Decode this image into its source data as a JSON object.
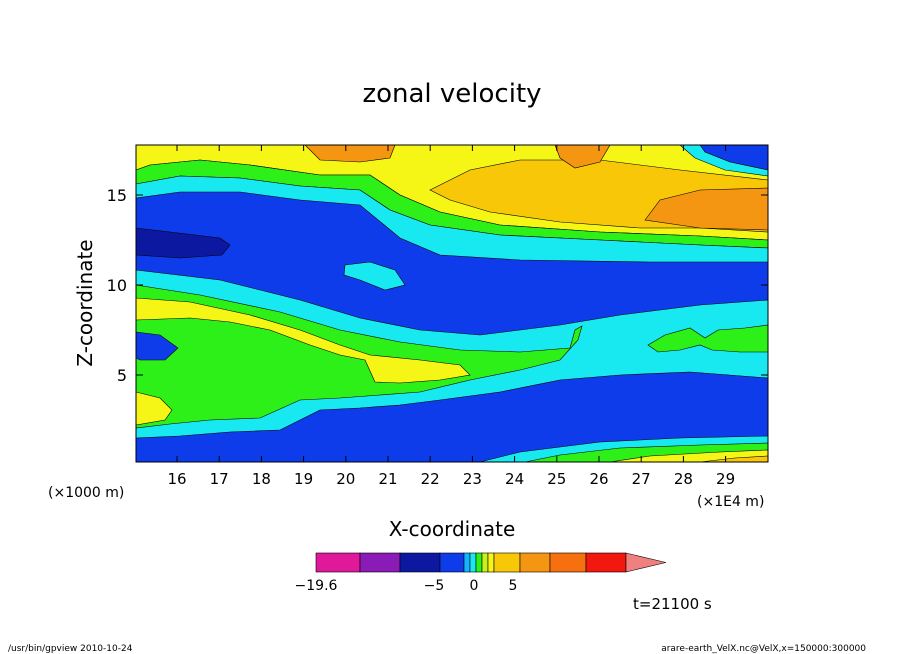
{
  "chart_data": {
    "type": "heatmap",
    "title": "zonal velocity",
    "xlabel": "X-coordinate",
    "ylabel": "Z-coordinate",
    "x_unit_left": "(×1000 m)",
    "x_unit_right": "(×1E4 m)",
    "x_ticks": [
      "16",
      "17",
      "18",
      "19",
      "20",
      "21",
      "22",
      "23",
      "24",
      "25",
      "26",
      "27",
      "28",
      "29"
    ],
    "y_ticks": [
      "5",
      "10",
      "15"
    ],
    "colorbar_labels": [
      "−19.6",
      "−5",
      "0",
      "5"
    ],
    "colorbar_colors": [
      "#e0189a",
      "#8a1bb6",
      "#0c18a0",
      "#0f3ceb",
      "#15b2ff",
      "#18e8f0",
      "#2cf018",
      "#c8f01a",
      "#f5f516",
      "#f7c708",
      "#f59612",
      "#f77010",
      "#f21810"
    ],
    "colorbar_extend_color": "#f08080",
    "time_label": "t=21100 s",
    "zones": [
      {
        "name": "strong_negative",
        "color": "#0c18a0"
      },
      {
        "name": "negative",
        "color": "#0f3ceb"
      },
      {
        "name": "weak_negative",
        "color": "#18e8f0"
      },
      {
        "name": "near_zero",
        "color": "#2cf018"
      },
      {
        "name": "weak_positive",
        "color": "#f5f516"
      },
      {
        "name": "positive",
        "color": "#f7c708"
      },
      {
        "name": "strong_positive",
        "color": "#f59612"
      }
    ]
  },
  "footer": {
    "left": "/usr/bin/gpview   2010-10-24",
    "right": "arare-earth_VelX.nc@VelX,x=150000:300000"
  }
}
